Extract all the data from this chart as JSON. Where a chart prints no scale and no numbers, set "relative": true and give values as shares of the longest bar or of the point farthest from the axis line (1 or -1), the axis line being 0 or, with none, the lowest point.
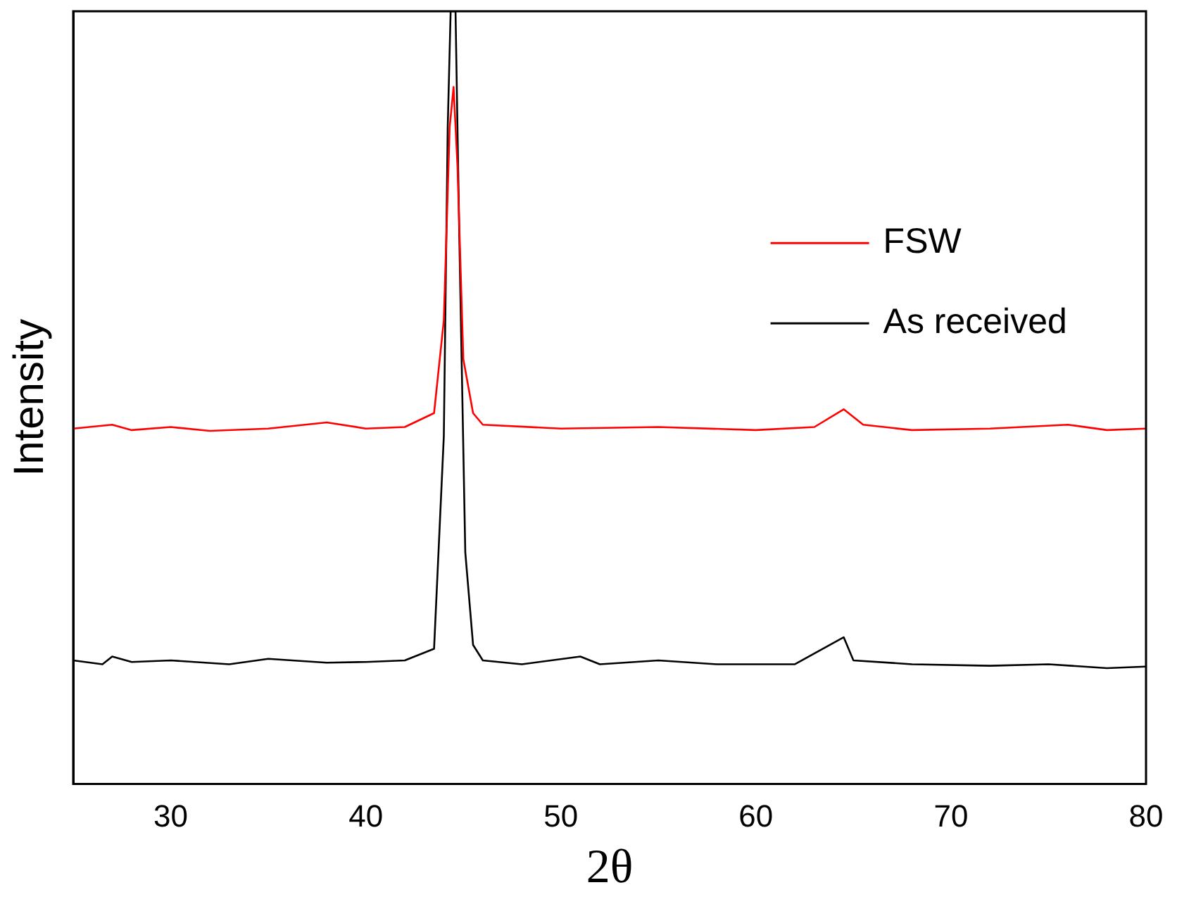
{
  "chart_data": {
    "type": "line",
    "relative": true,
    "xlabel": "2θ",
    "ylabel": "Intensity",
    "xlim": [
      25,
      80
    ],
    "xticks": [
      30,
      40,
      50,
      60,
      70,
      80
    ],
    "grid": false,
    "legend": "right",
    "marker": "none",
    "line_style": "solid",
    "series": [
      {
        "name": "FSW",
        "color": "#ff0000",
        "x": [
          25,
          27,
          28,
          30,
          32,
          35,
          38,
          40,
          42,
          43.5,
          44.0,
          44.3,
          44.5,
          44.7,
          45.0,
          45.5,
          46,
          50,
          55,
          60,
          63,
          64.5,
          65.5,
          68,
          72,
          76,
          78,
          80
        ],
        "values": [
          0.46,
          0.465,
          0.458,
          0.462,
          0.457,
          0.46,
          0.468,
          0.46,
          0.462,
          0.48,
          0.6,
          0.85,
          0.902,
          0.8,
          0.55,
          0.48,
          0.465,
          0.46,
          0.462,
          0.458,
          0.462,
          0.485,
          0.465,
          0.458,
          0.46,
          0.465,
          0.458,
          0.46
        ]
      },
      {
        "name": "As received",
        "color": "#000000",
        "x": [
          25,
          26.5,
          27,
          28,
          30,
          33,
          35,
          38,
          40,
          42,
          43.5,
          44.0,
          44.2,
          44.35,
          44.6,
          44.8,
          45.1,
          45.5,
          46,
          48,
          51,
          52,
          55,
          58,
          62,
          64.5,
          65,
          68,
          72,
          75,
          78,
          80
        ],
        "values": [
          0.16,
          0.155,
          0.165,
          0.158,
          0.16,
          0.155,
          0.162,
          0.157,
          0.158,
          0.16,
          0.175,
          0.45,
          0.85,
          1.0,
          1.0,
          0.7,
          0.3,
          0.18,
          0.16,
          0.155,
          0.165,
          0.155,
          0.16,
          0.155,
          0.155,
          0.19,
          0.16,
          0.155,
          0.153,
          0.155,
          0.15,
          0.152
        ]
      }
    ]
  }
}
